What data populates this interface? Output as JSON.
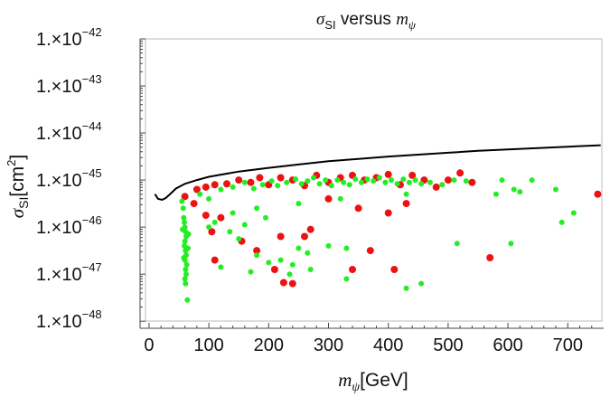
{
  "chart_data": {
    "type": "scatter",
    "title": {
      "sym": "σ",
      "sub": "SI",
      "mid": " versus ",
      "sym2": "m",
      "sub2": "ψ"
    },
    "xlabel": {
      "sym": "m",
      "sub": "ψ",
      "unit": "[GeV]"
    },
    "ylabel": {
      "sym": "σ",
      "sub": "SI",
      "unit_a": "[cm",
      "unit_sup": "2",
      "unit_b": "]"
    },
    "xlim": [
      -15,
      760
    ],
    "ylim_exp": [
      -48.15,
      -42.0
    ],
    "x_ticks": [
      {
        "value": 0,
        "label": "0"
      },
      {
        "value": 100,
        "label": "100"
      },
      {
        "value": 200,
        "label": "200"
      },
      {
        "value": 300,
        "label": "300"
      },
      {
        "value": 400,
        "label": "400"
      },
      {
        "value": 500,
        "label": "500"
      },
      {
        "value": 600,
        "label": "600"
      },
      {
        "value": 700,
        "label": "700"
      }
    ],
    "y_ticks": [
      {
        "exp": -42,
        "mant": "1.×10",
        "sup": "−42"
      },
      {
        "exp": -43,
        "mant": "1.×10",
        "sup": "−43"
      },
      {
        "exp": -44,
        "mant": "1.×10",
        "sup": "−44"
      },
      {
        "exp": -45,
        "mant": "1.×10",
        "sup": "−45"
      },
      {
        "exp": -46,
        "mant": "1.×10",
        "sup": "−46"
      },
      {
        "exp": -47,
        "mant": "1.×10",
        "sup": "−47"
      },
      {
        "exp": -48,
        "mant": "1.×10",
        "sup": "−48"
      }
    ],
    "colors": {
      "red": "#ee1111",
      "green": "#22ee22",
      "curve": "#000000"
    },
    "exclusion_curve": {
      "name": "upper limit",
      "points": [
        [
          10,
          -45.3
        ],
        [
          15,
          -45.4
        ],
        [
          22,
          -45.42
        ],
        [
          28,
          -45.38
        ],
        [
          35,
          -45.3
        ],
        [
          45,
          -45.18
        ],
        [
          60,
          -45.08
        ],
        [
          80,
          -45.0
        ],
        [
          100,
          -44.93
        ],
        [
          150,
          -44.82
        ],
        [
          200,
          -44.74
        ],
        [
          250,
          -44.67
        ],
        [
          300,
          -44.6
        ],
        [
          350,
          -44.55
        ],
        [
          400,
          -44.5
        ],
        [
          450,
          -44.46
        ],
        [
          500,
          -44.42
        ],
        [
          550,
          -44.38
        ],
        [
          600,
          -44.35
        ],
        [
          650,
          -44.32
        ],
        [
          700,
          -44.29
        ],
        [
          755,
          -44.26
        ]
      ]
    },
    "series": [
      {
        "name": "red",
        "points": [
          [
            60,
            -45.35
          ],
          [
            80,
            -45.2
          ],
          [
            95,
            -45.15
          ],
          [
            110,
            -45.1
          ],
          [
            130,
            -45.08
          ],
          [
            150,
            -45.0
          ],
          [
            170,
            -45.05
          ],
          [
            185,
            -44.95
          ],
          [
            200,
            -45.1
          ],
          [
            220,
            -44.95
          ],
          [
            240,
            -45.0
          ],
          [
            260,
            -45.12
          ],
          [
            280,
            -44.9
          ],
          [
            300,
            -45.05
          ],
          [
            320,
            -44.95
          ],
          [
            340,
            -44.9
          ],
          [
            360,
            -45.0
          ],
          [
            380,
            -44.95
          ],
          [
            400,
            -44.88
          ],
          [
            420,
            -45.1
          ],
          [
            440,
            -44.9
          ],
          [
            460,
            -45.0
          ],
          [
            480,
            -45.15
          ],
          [
            500,
            -45.0
          ],
          [
            520,
            -44.85
          ],
          [
            540,
            -45.05
          ],
          [
            750,
            -45.3
          ],
          [
            75,
            -45.5
          ],
          [
            95,
            -45.75
          ],
          [
            120,
            -45.8
          ],
          [
            105,
            -46.1
          ],
          [
            155,
            -46.3
          ],
          [
            220,
            -46.2
          ],
          [
            270,
            -46.05
          ],
          [
            300,
            -45.4
          ],
          [
            350,
            -45.6
          ],
          [
            400,
            -45.7
          ],
          [
            430,
            -45.5
          ],
          [
            370,
            -46.5
          ],
          [
            410,
            -46.9
          ],
          [
            570,
            -46.65
          ],
          [
            110,
            -46.7
          ],
          [
            180,
            -46.5
          ],
          [
            210,
            -46.9
          ],
          [
            260,
            -46.2
          ],
          [
            225,
            -47.18
          ],
          [
            240,
            -47.2
          ],
          [
            340,
            -46.9
          ]
        ]
      },
      {
        "name": "green",
        "points": [
          [
            55,
            -45.45
          ],
          [
            57,
            -45.6
          ],
          [
            58,
            -45.8
          ],
          [
            59,
            -45.9
          ],
          [
            60,
            -46.0
          ],
          [
            61,
            -46.1
          ],
          [
            62,
            -46.2
          ],
          [
            60,
            -46.3
          ],
          [
            59,
            -46.4
          ],
          [
            61,
            -46.5
          ],
          [
            62,
            -46.6
          ],
          [
            60,
            -46.7
          ],
          [
            63,
            -46.8
          ],
          [
            61,
            -46.9
          ],
          [
            62,
            -47.0
          ],
          [
            60,
            -47.1
          ],
          [
            61,
            -47.2
          ],
          [
            64,
            -47.55
          ],
          [
            65,
            -46.45
          ],
          [
            66,
            -46.15
          ],
          [
            56,
            -46.05
          ],
          [
            58,
            -46.65
          ],
          [
            85,
            -45.3
          ],
          [
            100,
            -45.4
          ],
          [
            120,
            -45.2
          ],
          [
            140,
            -45.15
          ],
          [
            160,
            -45.05
          ],
          [
            175,
            -45.18
          ],
          [
            190,
            -45.1
          ],
          [
            205,
            -45.02
          ],
          [
            215,
            -45.12
          ],
          [
            230,
            -45.05
          ],
          [
            245,
            -44.98
          ],
          [
            255,
            -45.08
          ],
          [
            265,
            -45.02
          ],
          [
            275,
            -44.95
          ],
          [
            285,
            -45.08
          ],
          [
            295,
            -45.0
          ],
          [
            305,
            -45.12
          ],
          [
            315,
            -45.0
          ],
          [
            325,
            -45.05
          ],
          [
            335,
            -45.1
          ],
          [
            345,
            -44.98
          ],
          [
            355,
            -45.05
          ],
          [
            365,
            -44.98
          ],
          [
            375,
            -45.02
          ],
          [
            385,
            -44.95
          ],
          [
            395,
            -45.05
          ],
          [
            405,
            -45.0
          ],
          [
            415,
            -45.08
          ],
          [
            425,
            -44.98
          ],
          [
            435,
            -45.05
          ],
          [
            445,
            -45.0
          ],
          [
            455,
            -45.08
          ],
          [
            470,
            -45.05
          ],
          [
            490,
            -45.1
          ],
          [
            510,
            -45.0
          ],
          [
            530,
            -45.02
          ],
          [
            590,
            -45.0
          ],
          [
            640,
            -45.0
          ],
          [
            610,
            -45.2
          ],
          [
            680,
            -45.2
          ],
          [
            710,
            -45.7
          ],
          [
            690,
            -45.9
          ],
          [
            580,
            -45.3
          ],
          [
            620,
            -45.25
          ],
          [
            430,
            -45.3
          ],
          [
            320,
            -45.4
          ],
          [
            250,
            -45.5
          ],
          [
            180,
            -45.6
          ],
          [
            140,
            -45.7
          ],
          [
            110,
            -45.9
          ],
          [
            100,
            -46.0
          ],
          [
            135,
            -46.1
          ],
          [
            160,
            -45.95
          ],
          [
            195,
            -45.8
          ],
          [
            150,
            -46.25
          ],
          [
            180,
            -46.6
          ],
          [
            200,
            -46.75
          ],
          [
            120,
            -46.85
          ],
          [
            170,
            -46.95
          ],
          [
            250,
            -46.45
          ],
          [
            300,
            -46.4
          ],
          [
            265,
            -46.55
          ],
          [
            330,
            -46.45
          ],
          [
            240,
            -46.8
          ],
          [
            235,
            -47.0
          ],
          [
            330,
            -47.1
          ],
          [
            430,
            -47.3
          ],
          [
            455,
            -47.2
          ],
          [
            515,
            -46.35
          ],
          [
            605,
            -46.35
          ],
          [
            220,
            -46.7
          ],
          [
            270,
            -46.9
          ]
        ]
      }
    ]
  }
}
